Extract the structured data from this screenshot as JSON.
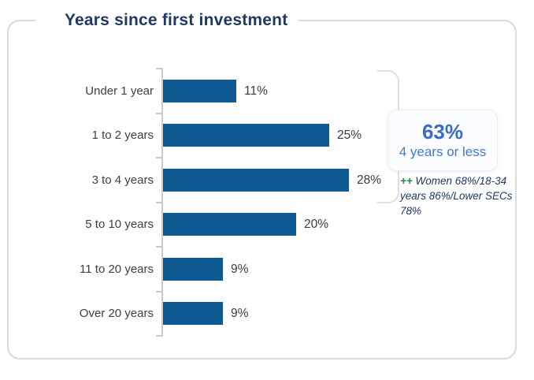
{
  "chart_data": {
    "type": "bar",
    "orientation": "horizontal",
    "title": "Years since first investment",
    "categories": [
      "Under 1 year",
      "1 to 2 years",
      "3 to 4 years",
      "5 to 10 years",
      "11 to 20 years",
      "Over 20 years"
    ],
    "values": [
      11,
      25,
      28,
      20,
      9,
      9
    ],
    "value_labels": [
      "11%",
      "25%",
      "28%",
      "20%",
      "9%",
      "9%"
    ],
    "xlim": [
      0,
      30
    ],
    "grid": false,
    "legend": false,
    "annotations": {
      "callout_value": "63%",
      "callout_label": "4 years or less",
      "callout_groups": [
        "Under 1 year",
        "1 to 2 years",
        "3 to 4 years"
      ],
      "note_marker": "++",
      "note_text": "Women 68%/18-34 years 86%/Lower SECs 78%"
    }
  },
  "colors": {
    "bar": "#0f5a92",
    "title_text": "#1f3864",
    "callout_value_text": "#3a6bc7",
    "callout_label_text": "#4778ce",
    "note_text": "#203864",
    "note_marker": "#1d9038",
    "axis": "#c9c9c9",
    "card_border": "#dadada",
    "label_text": "#3f3f3f"
  }
}
